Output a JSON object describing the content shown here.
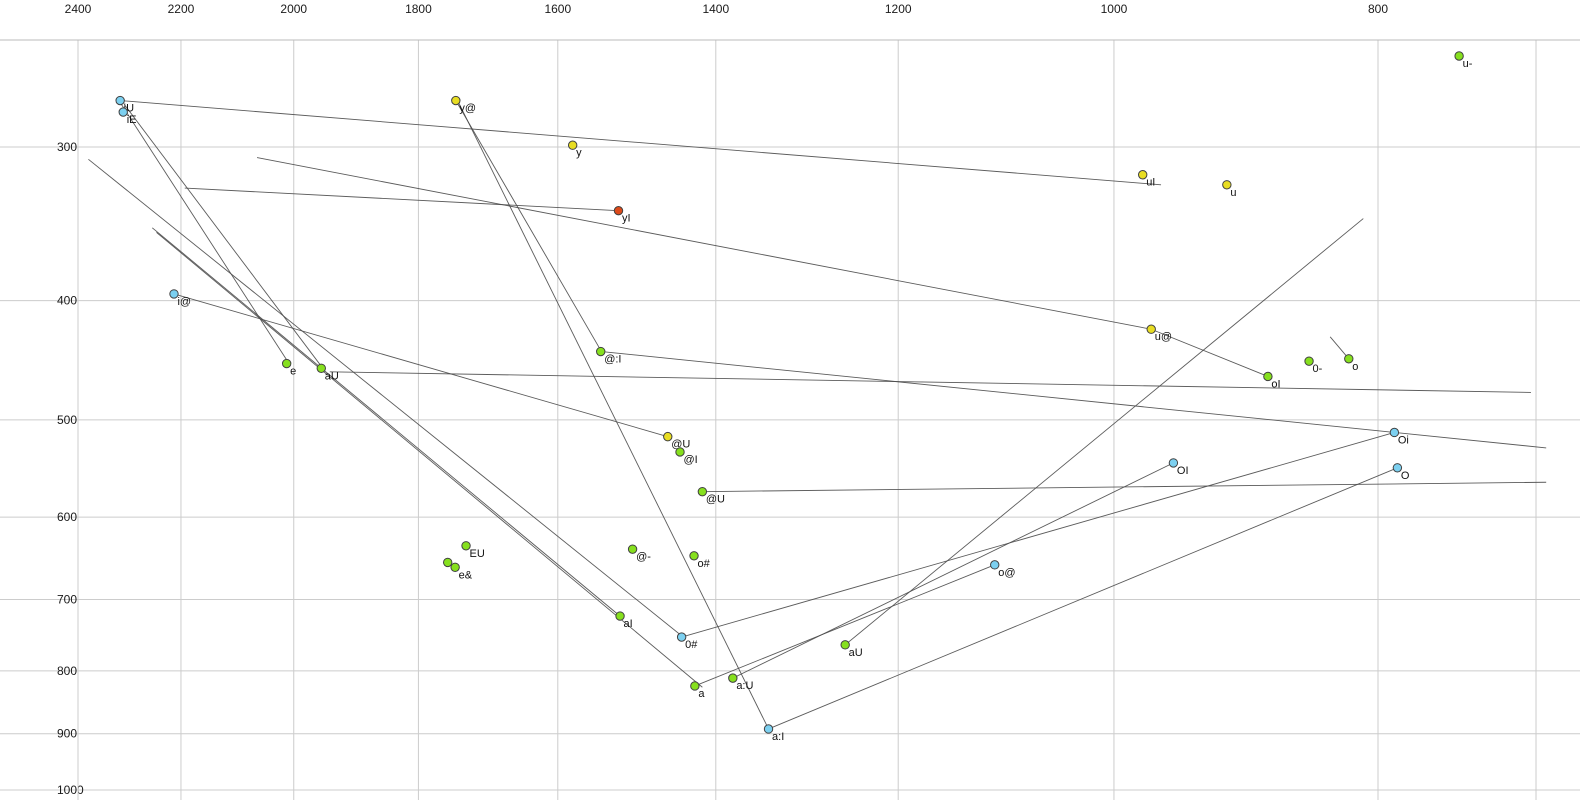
{
  "chart_data": {
    "type": "scatter",
    "title": "",
    "xlabel": "",
    "ylabel": "",
    "x_axis": {
      "ticks": [
        2400,
        2200,
        2000,
        1800,
        1600,
        1400,
        1200,
        1000,
        800
      ],
      "minor_ticks": [
        700
      ],
      "scale": "log",
      "reversed": true,
      "range": [
        2563,
        674
      ]
    },
    "y_axis": {
      "ticks": [
        300,
        400,
        500,
        600,
        700,
        800,
        900,
        1000
      ],
      "scale": "log",
      "increases_downward": true,
      "range": [
        246,
        1019
      ]
    },
    "grid": true,
    "legend": "none",
    "palette": {
      "green": "#86e01e",
      "yellow": "#e8dd22",
      "cyan": "#7cd0f0",
      "red": "#dd4a1a"
    },
    "points": [
      {
        "label": "u-",
        "f2": 747,
        "f1": 253,
        "c": "green"
      },
      {
        "label": "iU",
        "f2": 2316,
        "f1": 275,
        "c": "cyan"
      },
      {
        "label": "iE",
        "f2": 2310,
        "f1": 281,
        "c": "cyan"
      },
      {
        "label": "y@",
        "f2": 1744,
        "f1": 275,
        "c": "yellow"
      },
      {
        "label": "y",
        "f2": 1580,
        "f1": 299,
        "c": "yellow"
      },
      {
        "label": "uI",
        "f2": 976,
        "f1": 316,
        "c": "yellow"
      },
      {
        "label": "u",
        "f2": 909,
        "f1": 322,
        "c": "yellow"
      },
      {
        "label": "yI",
        "f2": 1520,
        "f1": 338,
        "c": "red"
      },
      {
        "label": "i@",
        "f2": 2213,
        "f1": 395,
        "c": "cyan"
      },
      {
        "label": "u@",
        "f2": 969,
        "f1": 422,
        "c": "yellow"
      },
      {
        "label": "0-",
        "f2": 848,
        "f1": 448,
        "c": "green"
      },
      {
        "label": "o",
        "f2": 820,
        "f1": 446,
        "c": "green"
      },
      {
        "label": "oI",
        "f2": 878,
        "f1": 461,
        "c": "green"
      },
      {
        "label": "@:I",
        "f2": 1543,
        "f1": 440,
        "c": "green"
      },
      {
        "label": "e",
        "f2": 2012,
        "f1": 450,
        "c": "green"
      },
      {
        "label": "aU",
        "f2": 1954,
        "f1": 454,
        "c": "green"
      },
      {
        "label": "@U",
        "f2": 1458,
        "f1": 516,
        "c": "yellow"
      },
      {
        "label": "@I",
        "f2": 1443,
        "f1": 531,
        "c": "green"
      },
      {
        "label": "@U",
        "f2": 1416,
        "f1": 572,
        "c": "green"
      },
      {
        "label": "Oi",
        "f2": 789,
        "f1": 512,
        "c": "cyan"
      },
      {
        "label": "OI",
        "f2": 951,
        "f1": 542,
        "c": "cyan"
      },
      {
        "label": "O",
        "f2": 787,
        "f1": 547,
        "c": "cyan"
      },
      {
        "label": "EU",
        "f2": 1729,
        "f1": 633,
        "c": "green"
      },
      {
        "label": "e&",
        "f2": 1745,
        "f1": 659,
        "c": "green"
      },
      {
        "label": "",
        "f2": 1756,
        "f1": 653,
        "c": "green"
      },
      {
        "label": "@-",
        "f2": 1502,
        "f1": 637,
        "c": "green"
      },
      {
        "label": "o#",
        "f2": 1426,
        "f1": 645,
        "c": "green"
      },
      {
        "label": "o@",
        "f2": 1106,
        "f1": 656,
        "c": "cyan"
      },
      {
        "label": "aI",
        "f2": 1518,
        "f1": 722,
        "c": "green"
      },
      {
        "label": "0#",
        "f2": 1441,
        "f1": 751,
        "c": "cyan"
      },
      {
        "label": "aU",
        "f2": 1255,
        "f1": 762,
        "c": "green"
      },
      {
        "label": "a:U",
        "f2": 1380,
        "f1": 811,
        "c": "green"
      },
      {
        "label": "a",
        "f2": 1425,
        "f1": 823,
        "c": "green"
      },
      {
        "label": "a:I",
        "f2": 1339,
        "f1": 892,
        "c": "cyan"
      }
    ],
    "segments": [
      [
        [
          2316,
          275
        ],
        [
          961,
          322
        ]
      ],
      [
        [
          2316,
          276
        ],
        [
          2008,
          450
        ]
      ],
      [
        [
          2308,
          277
        ],
        [
          1950,
          455
        ]
      ],
      [
        [
          2379,
          307
        ],
        [
          1438,
          752
        ]
      ],
      [
        [
          2254,
          349
        ],
        [
          1517,
          723
        ]
      ],
      [
        [
          2246,
          352
        ],
        [
          1416,
          825
        ]
      ],
      [
        [
          1744,
          275
        ],
        [
          1542,
          440
        ]
      ],
      [
        [
          1740,
          276
        ],
        [
          1339,
          892
        ]
      ],
      [
        [
          2193,
          324
        ],
        [
          1520,
          338
        ]
      ],
      [
        [
          2063,
          306
        ],
        [
          969,
          422
        ]
      ],
      [
        [
          969,
          422
        ],
        [
          878,
          461
        ]
      ],
      [
        [
          833,
          428
        ],
        [
          820,
          446
        ]
      ],
      [
        [
          1380,
          811
        ],
        [
          951,
          542
        ]
      ],
      [
        [
          1441,
          751
        ],
        [
          789,
          512
        ]
      ],
      [
        [
          1425,
          823
        ],
        [
          1106,
          656
        ]
      ],
      [
        [
          1940,
          457
        ],
        [
          703,
          475
        ]
      ],
      [
        [
          1416,
          572
        ],
        [
          694,
          562
        ]
      ],
      [
        [
          1255,
          762
        ],
        [
          810,
          343
        ]
      ],
      [
        [
          1542,
          440
        ],
        [
          694,
          527
        ]
      ],
      [
        [
          787,
          547
        ],
        [
          1339,
          892
        ]
      ],
      [
        [
          2213,
          395
        ],
        [
          1458,
          516
        ]
      ]
    ]
  }
}
